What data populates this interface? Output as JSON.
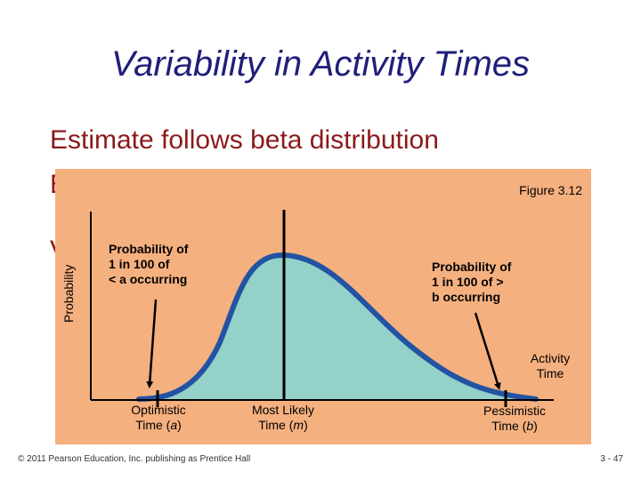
{
  "slide": {
    "title": "Variability in Activity Times",
    "bullet": "Estimate follows beta distribution",
    "hidden_fragment_1": "E",
    "hidden_fragment_2": "V"
  },
  "figure": {
    "label": "Figure 3.12",
    "y_axis_label": "Probability",
    "x_axis_label": [
      "Activity",
      "Time"
    ],
    "annotation_a": [
      "Probability of",
      "1 in 100 of",
      "< a occurring"
    ],
    "annotation_b": [
      "Probability of",
      "1 in 100 of >",
      "b occurring"
    ],
    "optimistic": {
      "line1": "Optimistic",
      "line2_pre": "Time (",
      "line2_var": "a",
      "line2_post": ")"
    },
    "most_likely": {
      "line1": "Most Likely",
      "line2_pre": "Time (",
      "line2_var": "m",
      "line2_post": ")"
    },
    "pessimistic": {
      "line1": "Pessimistic",
      "line2_pre": "Time (",
      "line2_var": "b",
      "line2_post": ")"
    },
    "colors": {
      "background": "#f5b07f",
      "curve_fill": "#94d1c8",
      "curve_stroke": "#2353a3",
      "pointer": "#000000"
    }
  },
  "footer": {
    "copyright": "© 2011 Pearson Education, Inc. publishing as Prentice Hall",
    "page": "3 - 47"
  }
}
